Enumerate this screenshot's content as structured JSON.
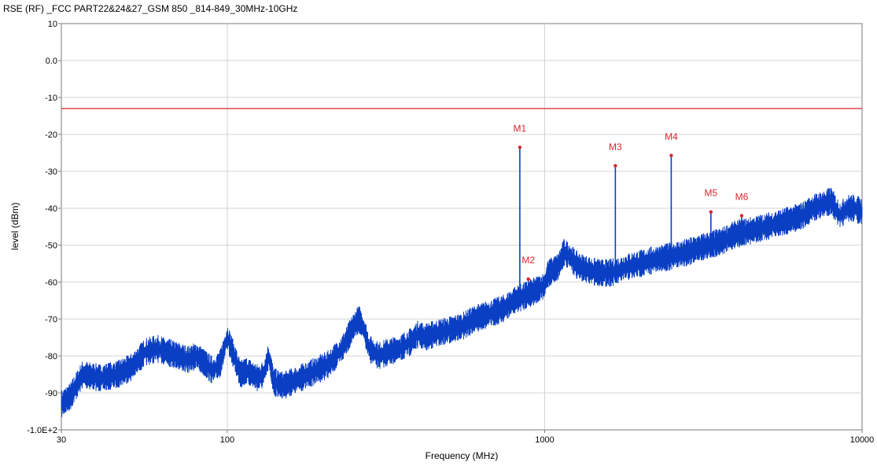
{
  "chart_data": {
    "type": "line",
    "title": "RSE (RF)  _FCC PART22&24&27_GSM 850 _814-849_30MHz-10GHz",
    "xlabel": "Frequency (MHz)",
    "ylabel": "level (dBm)",
    "xscale": "log",
    "xlim": [
      30,
      10000
    ],
    "ylim": [
      -100,
      10
    ],
    "x_ticks": [
      30,
      100,
      1000,
      10000
    ],
    "x_tick_labels": [
      "30",
      "100",
      "1000",
      "10000"
    ],
    "y_ticks": [
      10,
      0,
      -10,
      -20,
      -30,
      -40,
      -50,
      -60,
      -70,
      -80,
      -90,
      -100
    ],
    "y_tick_labels": [
      "10",
      "0.0",
      "-10",
      "-20",
      "-30",
      "-40",
      "-50",
      "-60",
      "-70",
      "-80",
      "-90",
      "-1.0E+2"
    ],
    "grid": true,
    "limit_line": {
      "y": -13,
      "color": "#d9262c"
    },
    "series": [
      {
        "color": "#0a3fc4",
        "points": [
          [
            30,
            -93
          ],
          [
            32,
            -91
          ],
          [
            35,
            -85
          ],
          [
            40,
            -86
          ],
          [
            45,
            -85
          ],
          [
            50,
            -83
          ],
          [
            55,
            -79
          ],
          [
            60,
            -78
          ],
          [
            65,
            -79
          ],
          [
            70,
            -80
          ],
          [
            75,
            -81
          ],
          [
            80,
            -80
          ],
          [
            85,
            -82
          ],
          [
            90,
            -84
          ],
          [
            95,
            -82
          ],
          [
            100,
            -75
          ],
          [
            105,
            -80
          ],
          [
            110,
            -85
          ],
          [
            115,
            -84
          ],
          [
            120,
            -85
          ],
          [
            125,
            -86
          ],
          [
            130,
            -85
          ],
          [
            135,
            -80
          ],
          [
            140,
            -87
          ],
          [
            150,
            -88
          ],
          [
            160,
            -87
          ],
          [
            170,
            -86
          ],
          [
            180,
            -85
          ],
          [
            190,
            -84
          ],
          [
            200,
            -83
          ],
          [
            210,
            -82
          ],
          [
            220,
            -80
          ],
          [
            230,
            -78
          ],
          [
            240,
            -75
          ],
          [
            250,
            -72
          ],
          [
            260,
            -70
          ],
          [
            270,
            -73
          ],
          [
            280,
            -78
          ],
          [
            300,
            -80
          ],
          [
            320,
            -79
          ],
          [
            350,
            -78
          ],
          [
            380,
            -76
          ],
          [
            400,
            -74
          ],
          [
            420,
            -75
          ],
          [
            450,
            -74
          ],
          [
            500,
            -73
          ],
          [
            550,
            -72
          ],
          [
            600,
            -70
          ],
          [
            650,
            -69
          ],
          [
            700,
            -68
          ],
          [
            750,
            -67
          ],
          [
            800,
            -65
          ],
          [
            850,
            -64
          ],
          [
            900,
            -63
          ],
          [
            950,
            -62
          ],
          [
            1000,
            -61
          ],
          [
            1020,
            -58
          ],
          [
            1050,
            -57
          ],
          [
            1100,
            -56
          ],
          [
            1150,
            -52
          ],
          [
            1200,
            -53
          ],
          [
            1250,
            -55
          ],
          [
            1300,
            -56
          ],
          [
            1400,
            -57
          ],
          [
            1500,
            -57.5
          ],
          [
            1600,
            -57.5
          ],
          [
            1700,
            -57
          ],
          [
            1800,
            -56
          ],
          [
            2000,
            -55
          ],
          [
            2200,
            -54
          ],
          [
            2500,
            -53
          ],
          [
            2800,
            -52
          ],
          [
            3000,
            -51
          ],
          [
            3300,
            -50
          ],
          [
            3600,
            -49
          ],
          [
            4000,
            -47
          ],
          [
            4500,
            -46
          ],
          [
            5000,
            -45
          ],
          [
            5500,
            -44
          ],
          [
            6000,
            -43
          ],
          [
            6500,
            -42
          ],
          [
            7000,
            -40
          ],
          [
            7500,
            -39
          ],
          [
            8000,
            -38
          ],
          [
            8500,
            -42
          ],
          [
            9000,
            -40
          ],
          [
            9500,
            -40
          ],
          [
            10000,
            -41
          ]
        ]
      }
    ],
    "markers": [
      {
        "label": "M1",
        "x": 835,
        "y": -23.5
      },
      {
        "label": "M2",
        "x": 888,
        "y": -59.2
      },
      {
        "label": "M3",
        "x": 1670,
        "y": -28.5
      },
      {
        "label": "M4",
        "x": 2505,
        "y": -25.7
      },
      {
        "label": "M5",
        "x": 3340,
        "y": -41
      },
      {
        "label": "M6",
        "x": 4175,
        "y": -42
      }
    ],
    "marker_color": "#d9262c"
  }
}
